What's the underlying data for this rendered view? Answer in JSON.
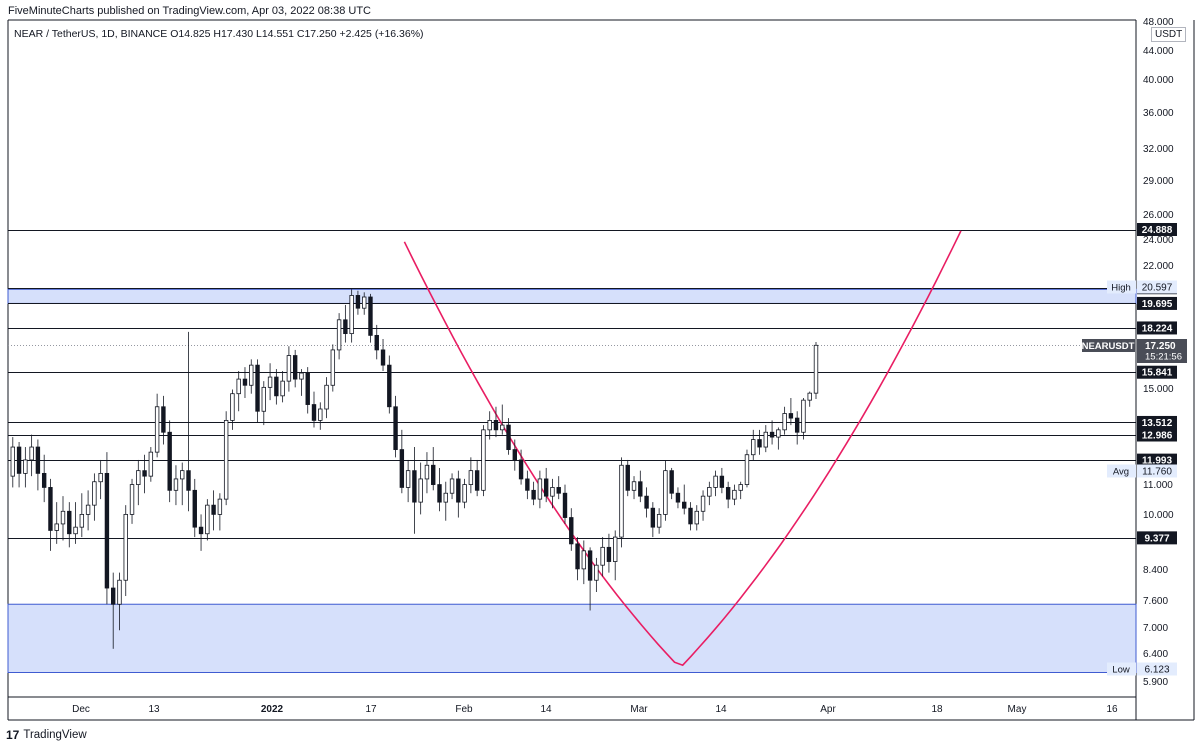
{
  "header": {
    "published": "FiveMinuteCharts published on TradingView.com, Apr 03, 2022 08:38 UTC",
    "symbol_line": "NEAR / TetherUS, 1D, BINANCE  O14.825  H17.430  L14.551  C17.250  +2.425 (+16.36%)",
    "currency": "USDT"
  },
  "footer": {
    "logo_glyph": "17",
    "brand": "TradingView"
  },
  "colors": {
    "line": "#131722",
    "curve": "#e91e63",
    "zone_fill": "#d6e0fb",
    "zone_border": "#3f5bd1",
    "candle_up_fill": "#ffffff",
    "candle_down_fill": "#131722"
  },
  "chart_data": {
    "type": "candlestick",
    "title": "NEAR / TetherUS, 1D, BINANCE",
    "scale": "log",
    "ylim": [
      5.6,
      48.0
    ],
    "x_axis_ticks": [
      "Dec",
      "13",
      "2022",
      "17",
      "Feb",
      "14",
      "Mar",
      "14",
      "Apr",
      "18",
      "May",
      "16"
    ],
    "y_axis_ticks": [
      "48.000",
      "44.000",
      "40.000",
      "36.000",
      "32.000",
      "29.000",
      "26.000",
      "24.000",
      "22.000",
      "15.000",
      "11.000",
      "10.000",
      "8.400",
      "7.600",
      "7.000",
      "6.400",
      "5.900"
    ],
    "horizontal_levels": [
      {
        "value": 24.888,
        "label": "24.888"
      },
      {
        "value": 20.699,
        "label": "20.699"
      },
      {
        "value": 19.695,
        "label": "19.695"
      },
      {
        "value": 18.224,
        "label": "18.224"
      },
      {
        "value": 15.841,
        "label": "15.841"
      },
      {
        "value": 13.512,
        "label": "13.512"
      },
      {
        "value": 12.986,
        "label": "12.986"
      },
      {
        "value": 11.993,
        "label": "11.993"
      },
      {
        "value": 9.377,
        "label": "9.377"
      }
    ],
    "range_markers": [
      {
        "name": "High",
        "value": "20.597"
      },
      {
        "name": "Avg",
        "value": "11.760"
      },
      {
        "name": "Low",
        "value": "6.123"
      }
    ],
    "price_label": {
      "symbol": "NEARUSDT",
      "price": "17.250",
      "countdown": "15:21:56",
      "value": 17.25
    },
    "zones": [
      {
        "low": 19.695,
        "high": 20.597
      },
      {
        "low": 6.123,
        "high": 7.6
      }
    ],
    "candles": [
      [
        11.4,
        12.9,
        11.0,
        12.5
      ],
      [
        12.5,
        12.7,
        11.0,
        11.5
      ],
      [
        11.5,
        12.5,
        11.0,
        12.0
      ],
      [
        12.0,
        13.0,
        11.4,
        12.5
      ],
      [
        12.5,
        12.8,
        10.9,
        11.5
      ],
      [
        11.5,
        12.2,
        10.5,
        11.0
      ],
      [
        11.0,
        11.3,
        9.0,
        9.6
      ],
      [
        9.6,
        10.5,
        9.2,
        9.8
      ],
      [
        9.8,
        10.7,
        9.3,
        10.2
      ],
      [
        10.2,
        10.5,
        9.1,
        9.5
      ],
      [
        9.5,
        10.5,
        9.2,
        9.7
      ],
      [
        9.7,
        10.8,
        9.4,
        10.1
      ],
      [
        10.1,
        10.9,
        9.6,
        10.4
      ],
      [
        10.4,
        11.5,
        9.9,
        11.2
      ],
      [
        11.2,
        12.0,
        10.6,
        11.5
      ],
      [
        11.5,
        12.3,
        7.6,
        8.0
      ],
      [
        8.0,
        8.4,
        6.6,
        7.6
      ],
      [
        7.6,
        8.4,
        7.0,
        8.2
      ],
      [
        8.2,
        10.4,
        7.8,
        10.1
      ],
      [
        10.1,
        11.3,
        9.8,
        11.1
      ],
      [
        11.1,
        12.0,
        10.4,
        11.6
      ],
      [
        11.6,
        12.2,
        10.8,
        11.4
      ],
      [
        11.4,
        12.5,
        11.2,
        12.3
      ],
      [
        12.3,
        14.8,
        12.1,
        14.2
      ],
      [
        14.2,
        14.7,
        12.6,
        13.1
      ],
      [
        13.1,
        13.6,
        10.5,
        10.9
      ],
      [
        10.9,
        11.8,
        10.4,
        11.3
      ],
      [
        11.3,
        11.9,
        10.4,
        11.6
      ],
      [
        11.6,
        18.0,
        10.2,
        10.9
      ],
      [
        10.9,
        11.3,
        9.4,
        9.7
      ],
      [
        9.7,
        10.1,
        9.0,
        9.5
      ],
      [
        9.5,
        10.6,
        9.3,
        10.4
      ],
      [
        10.4,
        10.9,
        9.6,
        10.1
      ],
      [
        10.1,
        10.8,
        9.6,
        10.6
      ],
      [
        10.6,
        14.0,
        10.4,
        13.6
      ],
      [
        13.6,
        15.0,
        13.2,
        14.8
      ],
      [
        14.8,
        15.9,
        14.0,
        15.5
      ],
      [
        15.5,
        16.1,
        14.6,
        15.2
      ],
      [
        15.2,
        16.5,
        14.8,
        16.2
      ],
      [
        16.2,
        16.5,
        13.5,
        14.0
      ],
      [
        14.0,
        15.4,
        13.4,
        15.1
      ],
      [
        15.1,
        16.3,
        14.5,
        15.6
      ],
      [
        15.6,
        16.0,
        14.3,
        14.7
      ],
      [
        14.7,
        15.9,
        14.4,
        15.4
      ],
      [
        15.4,
        17.2,
        14.9,
        16.7
      ],
      [
        16.7,
        17.0,
        15.1,
        15.5
      ],
      [
        15.5,
        16.0,
        14.7,
        15.8
      ],
      [
        15.8,
        16.1,
        13.9,
        14.3
      ],
      [
        14.3,
        14.9,
        13.3,
        13.6
      ],
      [
        13.6,
        14.4,
        13.2,
        14.1
      ],
      [
        14.1,
        15.6,
        13.7,
        15.2
      ],
      [
        15.2,
        17.3,
        14.9,
        17.0
      ],
      [
        17.0,
        19.1,
        16.5,
        18.7
      ],
      [
        18.7,
        19.6,
        17.4,
        17.9
      ],
      [
        17.9,
        20.6,
        17.4,
        20.2
      ],
      [
        20.2,
        20.5,
        19.0,
        19.4
      ],
      [
        19.4,
        20.4,
        19.0,
        20.1
      ],
      [
        20.1,
        20.3,
        17.4,
        17.8
      ],
      [
        17.8,
        18.4,
        16.5,
        17.0
      ],
      [
        17.0,
        17.6,
        15.9,
        16.2
      ],
      [
        16.2,
        16.7,
        13.9,
        14.2
      ],
      [
        14.2,
        14.7,
        12.1,
        12.4
      ],
      [
        12.4,
        13.2,
        10.8,
        11.0
      ],
      [
        11.0,
        12.0,
        10.5,
        11.6
      ],
      [
        11.6,
        12.5,
        9.5,
        10.5
      ],
      [
        10.5,
        11.9,
        10.1,
        11.3
      ],
      [
        11.3,
        12.3,
        10.8,
        11.8
      ],
      [
        11.8,
        12.5,
        10.9,
        11.1
      ],
      [
        11.1,
        11.7,
        10.2,
        10.5
      ],
      [
        10.5,
        11.2,
        9.9,
        10.8
      ],
      [
        10.8,
        11.5,
        10.6,
        11.3
      ],
      [
        11.3,
        11.6,
        10.0,
        10.5
      ],
      [
        10.5,
        11.3,
        10.3,
        11.1
      ],
      [
        11.1,
        12.1,
        10.8,
        11.6
      ],
      [
        11.6,
        12.0,
        10.7,
        10.9
      ],
      [
        10.9,
        13.4,
        10.7,
        13.2
      ],
      [
        13.2,
        14.0,
        12.8,
        13.6
      ],
      [
        13.6,
        14.2,
        12.9,
        13.2
      ],
      [
        13.2,
        14.3,
        13.0,
        13.4
      ],
      [
        13.4,
        13.7,
        12.2,
        12.4
      ],
      [
        12.4,
        12.8,
        11.6,
        12.0
      ],
      [
        12.0,
        12.4,
        11.1,
        11.3
      ],
      [
        11.3,
        11.6,
        10.6,
        10.9
      ],
      [
        10.9,
        11.2,
        10.4,
        10.6
      ],
      [
        10.6,
        11.6,
        10.3,
        11.3
      ],
      [
        11.3,
        11.7,
        10.5,
        10.7
      ],
      [
        10.7,
        11.3,
        10.3,
        11.0
      ],
      [
        11.0,
        11.4,
        10.6,
        10.8
      ],
      [
        10.8,
        11.1,
        9.8,
        10.0
      ],
      [
        10.0,
        10.3,
        9.0,
        9.2
      ],
      [
        9.2,
        9.4,
        8.2,
        8.5
      ],
      [
        8.5,
        9.3,
        8.1,
        9.0
      ],
      [
        9.0,
        9.1,
        7.45,
        8.2
      ],
      [
        8.2,
        8.8,
        7.9,
        8.6
      ],
      [
        8.6,
        9.4,
        8.3,
        9.1
      ],
      [
        9.1,
        9.5,
        8.4,
        8.7
      ],
      [
        8.7,
        9.6,
        8.2,
        9.4
      ],
      [
        9.4,
        12.1,
        9.1,
        11.8
      ],
      [
        11.8,
        12.0,
        10.7,
        10.9
      ],
      [
        10.9,
        11.4,
        10.6,
        11.2
      ],
      [
        11.2,
        11.6,
        10.5,
        10.7
      ],
      [
        10.7,
        11.0,
        10.0,
        10.3
      ],
      [
        10.3,
        10.5,
        9.4,
        9.7
      ],
      [
        9.7,
        10.3,
        9.5,
        10.1
      ],
      [
        10.1,
        12.0,
        9.9,
        11.6
      ],
      [
        11.6,
        11.7,
        10.6,
        10.8
      ],
      [
        10.8,
        11.0,
        10.3,
        10.5
      ],
      [
        10.5,
        11.1,
        10.1,
        10.3
      ],
      [
        10.3,
        10.5,
        9.6,
        9.8
      ],
      [
        9.8,
        10.4,
        9.6,
        10.2
      ],
      [
        10.2,
        10.9,
        9.9,
        10.7
      ],
      [
        10.7,
        11.2,
        10.4,
        11.0
      ],
      [
        11.0,
        11.6,
        10.7,
        11.4
      ],
      [
        11.4,
        11.7,
        10.8,
        11.0
      ],
      [
        11.0,
        11.2,
        10.3,
        10.6
      ],
      [
        10.6,
        11.1,
        10.4,
        10.9
      ],
      [
        10.9,
        11.2,
        10.6,
        11.1
      ],
      [
        11.1,
        12.4,
        11.0,
        12.2
      ],
      [
        12.2,
        13.2,
        12.0,
        12.8
      ],
      [
        12.8,
        13.2,
        12.2,
        12.5
      ],
      [
        12.5,
        13.4,
        12.3,
        13.1
      ],
      [
        13.1,
        13.6,
        12.6,
        12.9
      ],
      [
        12.9,
        13.3,
        12.4,
        13.2
      ],
      [
        13.2,
        14.2,
        13.0,
        13.9
      ],
      [
        13.9,
        14.6,
        13.4,
        13.7
      ],
      [
        13.7,
        14.0,
        12.6,
        13.1
      ],
      [
        13.1,
        14.6,
        12.8,
        14.5
      ],
      [
        14.5,
        14.9,
        14.2,
        14.825
      ],
      [
        14.825,
        17.43,
        14.551,
        17.25
      ]
    ]
  }
}
